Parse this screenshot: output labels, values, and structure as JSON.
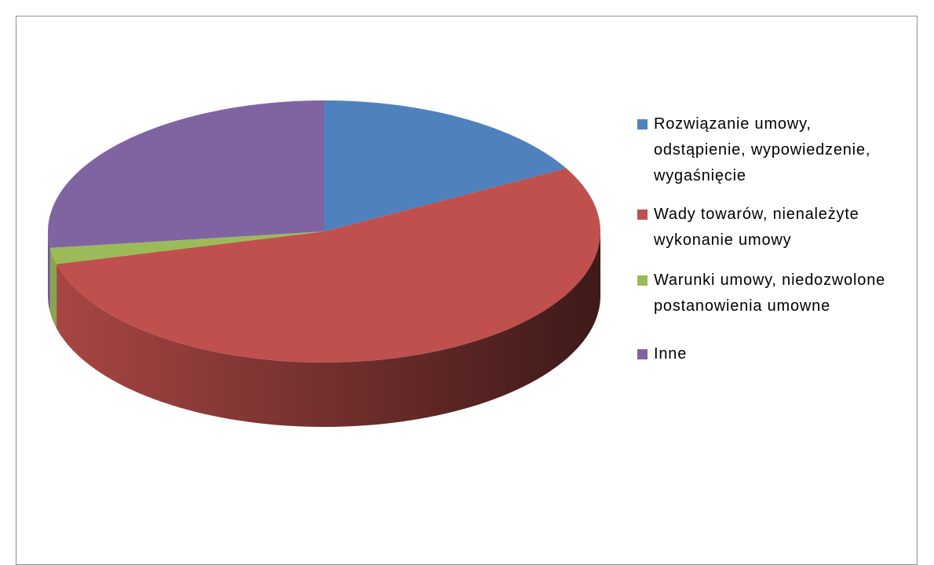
{
  "chart_data": {
    "type": "pie3d",
    "categories": [
      "Rozwiązanie umowy, odstąpienie, wypowiedzenie, wygaśnięcie",
      "Wady towarów, nienależyte wykonanie umowy",
      "Warunki umowy, niedozwolone postanowienia umowne",
      "Inne"
    ],
    "values": [
      17,
      54,
      2,
      27
    ],
    "colors": [
      "#4f81bd",
      "#c0504d",
      "#9bbb59",
      "#8064a2"
    ],
    "legend": "right"
  }
}
